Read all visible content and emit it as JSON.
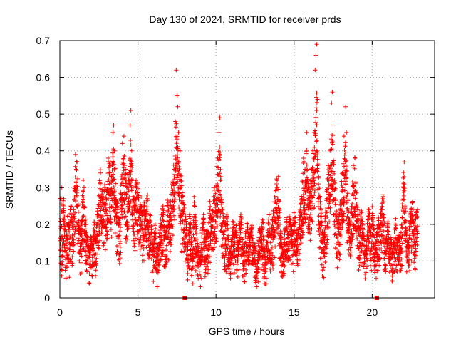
{
  "chart_data": {
    "type": "scatter",
    "title": "Day 130 of 2024, SRMTID for receiver prds",
    "xlabel": "GPS time / hours",
    "ylabel": "SRMTID / TECUs",
    "xlim": [
      0,
      24
    ],
    "ylim": [
      0,
      0.7
    ],
    "xticks": [
      0,
      5,
      10,
      15,
      20
    ],
    "xtick_labels": [
      "0",
      "5",
      "10",
      "15",
      "20"
    ],
    "yticks": [
      0,
      0.1,
      0.2,
      0.3,
      0.4,
      0.5,
      0.6,
      0.7
    ],
    "ytick_labels": [
      "0",
      "0.1",
      "0.2",
      "0.3",
      "0.4",
      "0.5",
      "0.6",
      "0.7"
    ],
    "grid": true,
    "marker": "+",
    "color": "#ff0000",
    "x_range_of_points": [
      0,
      22.9
    ],
    "gap_markers_x": [
      8.0,
      20.3
    ],
    "series": [
      {
        "name": "SRMTID",
        "points": [
          [
            0.05,
            0.13
          ],
          [
            0.1,
            0.3
          ],
          [
            0.12,
            0.06
          ],
          [
            0.2,
            0.22
          ],
          [
            0.25,
            0.27
          ],
          [
            0.3,
            0.18
          ],
          [
            0.4,
            0.11
          ],
          [
            0.5,
            0.2
          ],
          [
            0.6,
            0.15
          ],
          [
            0.7,
            0.25
          ],
          [
            0.8,
            0.16
          ],
          [
            0.9,
            0.22
          ],
          [
            1.0,
            0.39
          ],
          [
            1.05,
            0.35
          ],
          [
            1.1,
            0.37
          ],
          [
            1.2,
            0.18
          ],
          [
            1.3,
            0.14
          ],
          [
            1.4,
            0.2
          ],
          [
            1.5,
            0.32
          ],
          [
            1.55,
            0.3
          ],
          [
            1.6,
            0.21
          ],
          [
            1.7,
            0.15
          ],
          [
            1.8,
            0.12
          ],
          [
            1.9,
            0.09
          ],
          [
            2.0,
            0.14
          ],
          [
            2.1,
            0.1
          ],
          [
            2.2,
            0.18
          ],
          [
            2.3,
            0.12
          ],
          [
            2.4,
            0.2
          ],
          [
            2.5,
            0.25
          ],
          [
            2.6,
            0.34
          ],
          [
            2.7,
            0.28
          ],
          [
            2.8,
            0.24
          ],
          [
            2.9,
            0.3
          ],
          [
            3.0,
            0.27
          ],
          [
            3.1,
            0.38
          ],
          [
            3.2,
            0.36
          ],
          [
            3.3,
            0.33
          ],
          [
            3.4,
            0.45
          ],
          [
            3.45,
            0.47
          ],
          [
            3.5,
            0.4
          ],
          [
            3.6,
            0.26
          ],
          [
            3.7,
            0.22
          ],
          [
            3.8,
            0.17
          ],
          [
            3.9,
            0.27
          ],
          [
            4.0,
            0.42
          ],
          [
            4.1,
            0.44
          ],
          [
            4.2,
            0.35
          ],
          [
            4.3,
            0.3
          ],
          [
            4.4,
            0.32
          ],
          [
            4.5,
            0.47
          ],
          [
            4.55,
            0.51
          ],
          [
            4.6,
            0.4
          ],
          [
            4.7,
            0.26
          ],
          [
            4.8,
            0.22
          ],
          [
            4.9,
            0.31
          ],
          [
            5.0,
            0.28
          ],
          [
            5.1,
            0.2
          ],
          [
            5.2,
            0.25
          ],
          [
            5.3,
            0.18
          ],
          [
            5.4,
            0.23
          ],
          [
            5.5,
            0.19
          ],
          [
            5.6,
            0.27
          ],
          [
            5.7,
            0.16
          ],
          [
            5.8,
            0.21
          ],
          [
            5.9,
            0.13
          ],
          [
            6.0,
            0.1
          ],
          [
            6.1,
            0.18
          ],
          [
            6.2,
            0.07
          ],
          [
            6.3,
            0.12
          ],
          [
            6.4,
            0.15
          ],
          [
            6.5,
            0.2
          ],
          [
            6.6,
            0.22
          ],
          [
            6.7,
            0.17
          ],
          [
            6.8,
            0.13
          ],
          [
            6.9,
            0.25
          ],
          [
            7.0,
            0.19
          ],
          [
            7.1,
            0.23
          ],
          [
            7.2,
            0.31
          ],
          [
            7.3,
            0.35
          ],
          [
            7.4,
            0.48
          ],
          [
            7.45,
            0.62
          ],
          [
            7.5,
            0.55
          ],
          [
            7.55,
            0.52
          ],
          [
            7.6,
            0.45
          ],
          [
            7.7,
            0.4
          ],
          [
            7.8,
            0.28
          ],
          [
            7.9,
            0.24
          ],
          [
            8.1,
            0.17
          ],
          [
            8.2,
            0.1
          ],
          [
            8.3,
            0.2
          ],
          [
            8.4,
            0.15
          ],
          [
            8.5,
            0.08
          ],
          [
            8.6,
            0.26
          ],
          [
            8.7,
            0.18
          ],
          [
            8.8,
            0.12
          ],
          [
            8.9,
            0.1
          ],
          [
            9.0,
            0.06
          ],
          [
            9.1,
            0.15
          ],
          [
            9.2,
            0.2
          ],
          [
            9.3,
            0.11
          ],
          [
            9.4,
            0.16
          ],
          [
            9.5,
            0.13
          ],
          [
            9.6,
            0.24
          ],
          [
            9.7,
            0.18
          ],
          [
            9.8,
            0.21
          ],
          [
            9.9,
            0.3
          ],
          [
            10.0,
            0.26
          ],
          [
            10.1,
            0.38
          ],
          [
            10.2,
            0.45
          ],
          [
            10.25,
            0.49
          ],
          [
            10.3,
            0.33
          ],
          [
            10.4,
            0.22
          ],
          [
            10.5,
            0.18
          ],
          [
            10.6,
            0.16
          ],
          [
            10.7,
            0.2
          ],
          [
            10.8,
            0.12
          ],
          [
            10.9,
            0.09
          ],
          [
            11.0,
            0.14
          ],
          [
            11.1,
            0.19
          ],
          [
            11.2,
            0.13
          ],
          [
            11.3,
            0.17
          ],
          [
            11.4,
            0.1
          ],
          [
            11.5,
            0.16
          ],
          [
            11.6,
            0.2
          ],
          [
            11.7,
            0.12
          ],
          [
            11.8,
            0.08
          ],
          [
            11.9,
            0.15
          ],
          [
            12.0,
            0.18
          ],
          [
            12.1,
            0.11
          ],
          [
            12.2,
            0.14
          ],
          [
            12.3,
            0.17
          ],
          [
            12.4,
            0.09
          ],
          [
            12.5,
            0.12
          ],
          [
            12.6,
            0.03
          ],
          [
            12.7,
            0.1
          ],
          [
            12.8,
            0.16
          ],
          [
            12.9,
            0.14
          ],
          [
            13.0,
            0.19
          ],
          [
            13.1,
            0.11
          ],
          [
            13.2,
            0.08
          ],
          [
            13.3,
            0.15
          ],
          [
            13.4,
            0.2
          ],
          [
            13.5,
            0.12
          ],
          [
            13.6,
            0.18
          ],
          [
            13.7,
            0.22
          ],
          [
            13.8,
            0.26
          ],
          [
            13.9,
            0.3
          ],
          [
            14.0,
            0.33
          ],
          [
            14.1,
            0.17
          ],
          [
            14.2,
            0.12
          ],
          [
            14.3,
            0.09
          ],
          [
            14.4,
            0.15
          ],
          [
            14.5,
            0.19
          ],
          [
            14.6,
            0.13
          ],
          [
            14.7,
            0.2
          ],
          [
            14.8,
            0.17
          ],
          [
            14.9,
            0.14
          ],
          [
            15.0,
            0.21
          ],
          [
            15.1,
            0.18
          ],
          [
            15.2,
            0.12
          ],
          [
            15.3,
            0.16
          ],
          [
            15.4,
            0.22
          ],
          [
            15.5,
            0.27
          ],
          [
            15.6,
            0.38
          ],
          [
            15.7,
            0.35
          ],
          [
            15.8,
            0.45
          ],
          [
            15.9,
            0.3
          ],
          [
            16.0,
            0.25
          ],
          [
            16.1,
            0.35
          ],
          [
            16.2,
            0.4
          ],
          [
            16.3,
            0.45
          ],
          [
            16.35,
            0.62
          ],
          [
            16.4,
            0.66
          ],
          [
            16.45,
            0.69
          ],
          [
            16.5,
            0.54
          ],
          [
            16.6,
            0.28
          ],
          [
            16.7,
            0.22
          ],
          [
            16.8,
            0.15
          ],
          [
            16.9,
            0.13
          ],
          [
            17.0,
            0.19
          ],
          [
            17.1,
            0.27
          ],
          [
            17.2,
            0.36
          ],
          [
            17.3,
            0.4
          ],
          [
            17.4,
            0.53
          ],
          [
            17.45,
            0.56
          ],
          [
            17.5,
            0.47
          ],
          [
            17.6,
            0.32
          ],
          [
            17.7,
            0.22
          ],
          [
            17.8,
            0.16
          ],
          [
            17.9,
            0.2
          ],
          [
            18.0,
            0.26
          ],
          [
            18.1,
            0.34
          ],
          [
            18.2,
            0.44
          ],
          [
            18.3,
            0.52
          ],
          [
            18.35,
            0.45
          ],
          [
            18.4,
            0.28
          ],
          [
            18.5,
            0.2
          ],
          [
            18.6,
            0.16
          ],
          [
            18.7,
            0.23
          ],
          [
            18.8,
            0.36
          ],
          [
            18.9,
            0.38
          ],
          [
            19.0,
            0.25
          ],
          [
            19.1,
            0.19
          ],
          [
            19.2,
            0.14
          ],
          [
            19.3,
            0.21
          ],
          [
            19.4,
            0.17
          ],
          [
            19.5,
            0.12
          ],
          [
            19.6,
            0.08
          ],
          [
            19.7,
            0.18
          ],
          [
            19.8,
            0.24
          ],
          [
            19.9,
            0.13
          ],
          [
            20.0,
            0.22
          ],
          [
            20.1,
            0.17
          ],
          [
            20.2,
            0.11
          ],
          [
            20.4,
            0.19
          ],
          [
            20.5,
            0.15
          ],
          [
            20.6,
            0.24
          ],
          [
            20.7,
            0.26
          ],
          [
            20.8,
            0.14
          ],
          [
            20.9,
            0.12
          ],
          [
            21.0,
            0.18
          ],
          [
            21.1,
            0.1
          ],
          [
            21.2,
            0.15
          ],
          [
            21.3,
            0.08
          ],
          [
            21.4,
            0.13
          ],
          [
            21.5,
            0.19
          ],
          [
            21.6,
            0.11
          ],
          [
            21.7,
            0.16
          ],
          [
            21.8,
            0.09
          ],
          [
            21.9,
            0.2
          ],
          [
            22.0,
            0.3
          ],
          [
            22.05,
            0.37
          ],
          [
            22.1,
            0.25
          ],
          [
            22.2,
            0.14
          ],
          [
            22.3,
            0.1
          ],
          [
            22.4,
            0.17
          ],
          [
            22.5,
            0.21
          ],
          [
            22.6,
            0.24
          ],
          [
            22.7,
            0.15
          ],
          [
            22.8,
            0.19
          ],
          [
            22.9,
            0.24
          ]
        ]
      }
    ],
    "band_sampling_seed": 130
  }
}
